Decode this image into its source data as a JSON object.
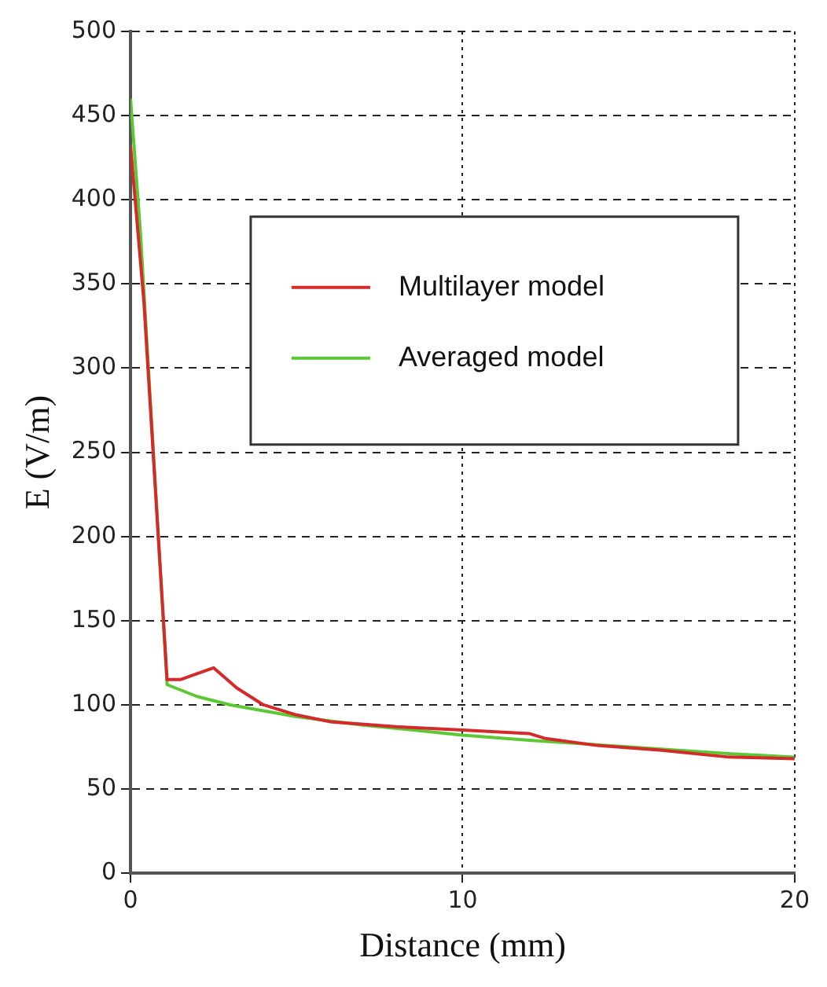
{
  "chart_data": {
    "type": "line",
    "xlabel": "Distance (mm)",
    "ylabel": "E (V/m)",
    "xlim": [
      0,
      20
    ],
    "xticks": [
      0,
      10,
      20
    ],
    "ylim": [
      0,
      500
    ],
    "yticks": [
      0,
      50,
      100,
      150,
      200,
      250,
      300,
      350,
      400,
      450,
      500
    ],
    "grid": true,
    "legend": "top right",
    "marker": "none",
    "line_style": "solid",
    "series": [
      {
        "name": "Multilayer model",
        "color": "#d42a2a",
        "x": [
          0,
          0.4,
          1.1,
          1.5,
          2.5,
          3.2,
          4,
          5,
          6,
          8,
          10,
          12,
          12.5,
          14,
          16,
          18,
          20
        ],
        "values": [
          432,
          340,
          115,
          115,
          122,
          110,
          100,
          94,
          90,
          87,
          85,
          83,
          80,
          76,
          73,
          69,
          68
        ]
      },
      {
        "name": "Averaged model",
        "color": "#5cc836",
        "x": [
          0,
          0.3,
          1.1,
          2,
          3,
          5,
          7,
          10,
          12,
          15,
          18,
          20
        ],
        "values": [
          460,
          380,
          112,
          105,
          100,
          93,
          88,
          82,
          79,
          75,
          71,
          69
        ]
      }
    ]
  }
}
